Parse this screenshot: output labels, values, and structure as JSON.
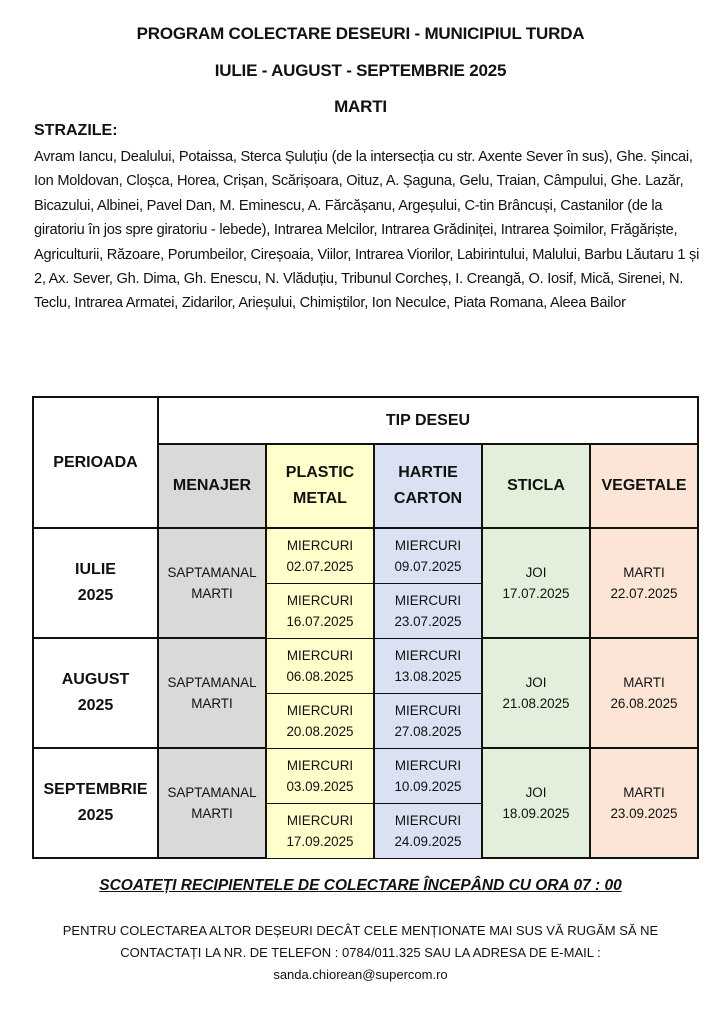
{
  "header": {
    "title": "PROGRAM COLECTARE DESEURI - MUNICIPIUL TURDA",
    "period": "IULIE - AUGUST - SEPTEMBRIE 2025",
    "day": "MARTI"
  },
  "streets": {
    "label": "STRAZILE:",
    "text": "Avram Iancu, Dealului, Potaissa, Sterca Șuluțiu (de la intersecția cu str. Axente Sever în sus), Ghe. Șincai, Ion Moldovan, Cloșca, Horea, Crișan, Scărișoara, Oituz, A. Șaguna, Gelu, Traian, Câmpului, Ghe. Lazăr, Bicazului, Albinei, Pavel Dan, M. Eminescu, A. Fărcășanu, Argeșului, C-tin Brâncuși, Castanilor (de la giratoriu în jos spre giratoriu - lebede), Intrarea Melcilor, Intrarea Grădiniței, Intrarea Șoimilor, Frăgăriște, Agriculturii, Răzoare, Porumbeilor, Cireșoaia, Viilor, Intrarea Viorilor, Labirintului, Malului, Barbu Lăutaru 1 și 2, Ax. Sever, Gh. Dima, Gh. Enescu, N. Vlăduțiu, Tribunul Corcheș, I. Creangă, O. Iosif, Mică, Sirenei, N. Teclu, Intrarea Armatei, Zidarilor, Arieșului, Chimiștilor, Ion Neculce, Piata Romana, Aleea Bailor"
  },
  "table": {
    "period_header": "PERIOADA",
    "type_header": "TIP DESEU",
    "columns": [
      {
        "line1": "MENAJER",
        "line2": "",
        "color": "#d9d9d9"
      },
      {
        "line1": "PLASTIC",
        "line2": "METAL",
        "color": "#ffffcc"
      },
      {
        "line1": "HARTIE",
        "line2": "CARTON",
        "color": "#d9e1f2"
      },
      {
        "line1": "STICLA",
        "line2": "",
        "color": "#e2efda"
      },
      {
        "line1": "VEGETALE",
        "line2": "",
        "color": "#fce4d6"
      }
    ],
    "rows": [
      {
        "period1": "IULIE",
        "period2": "2025",
        "menajer1": "SAPTAMANAL",
        "menajer2": "MARTI",
        "plastic": [
          {
            "day": "MIERCURI",
            "date": "02.07.2025"
          },
          {
            "day": "MIERCURI",
            "date": "16.07.2025"
          }
        ],
        "hartie": [
          {
            "day": "MIERCURI",
            "date": "09.07.2025"
          },
          {
            "day": "MIERCURI",
            "date": "23.07.2025"
          }
        ],
        "sticla": {
          "day": "JOI",
          "date": "17.07.2025"
        },
        "vegetale": {
          "day": "MARTI",
          "date": "22.07.2025"
        }
      },
      {
        "period1": "AUGUST",
        "period2": "2025",
        "menajer1": "SAPTAMANAL",
        "menajer2": "MARTI",
        "plastic": [
          {
            "day": "MIERCURI",
            "date": "06.08.2025"
          },
          {
            "day": "MIERCURI",
            "date": "20.08.2025"
          }
        ],
        "hartie": [
          {
            "day": "MIERCURI",
            "date": "13.08.2025"
          },
          {
            "day": "MIERCURI",
            "date": "27.08.2025"
          }
        ],
        "sticla": {
          "day": "JOI",
          "date": "21.08.2025"
        },
        "vegetale": {
          "day": "MARTI",
          "date": "26.08.2025"
        }
      },
      {
        "period1": "SEPTEMBRIE",
        "period2": "2025",
        "menajer1": "SAPTAMANAL",
        "menajer2": "MARTI",
        "plastic": [
          {
            "day": "MIERCURI",
            "date": "03.09.2025"
          },
          {
            "day": "MIERCURI",
            "date": "17.09.2025"
          }
        ],
        "hartie": [
          {
            "day": "MIERCURI",
            "date": "10.09.2025"
          },
          {
            "day": "MIERCURI",
            "date": "24.09.2025"
          }
        ],
        "sticla": {
          "day": "JOI",
          "date": "18.09.2025"
        },
        "vegetale": {
          "day": "MARTI",
          "date": "23.09.2025"
        }
      }
    ]
  },
  "footer": {
    "notice": "SCOATEȚI RECIPIENTELE DE COLECTARE ÎNCEPÂND CU ORA 07 : 00",
    "contact": "PENTRU COLECTAREA ALTOR DEȘEURI DECÂT CELE MENȚIONATE MAI SUS VĂ RUGĂM SĂ NE CONTACTAȚI LA NR. DE TELEFON : 0784/011.325  SAU LA ADRESA DE E-MAIL :",
    "email": "sanda.chiorean@supercom.ro"
  }
}
